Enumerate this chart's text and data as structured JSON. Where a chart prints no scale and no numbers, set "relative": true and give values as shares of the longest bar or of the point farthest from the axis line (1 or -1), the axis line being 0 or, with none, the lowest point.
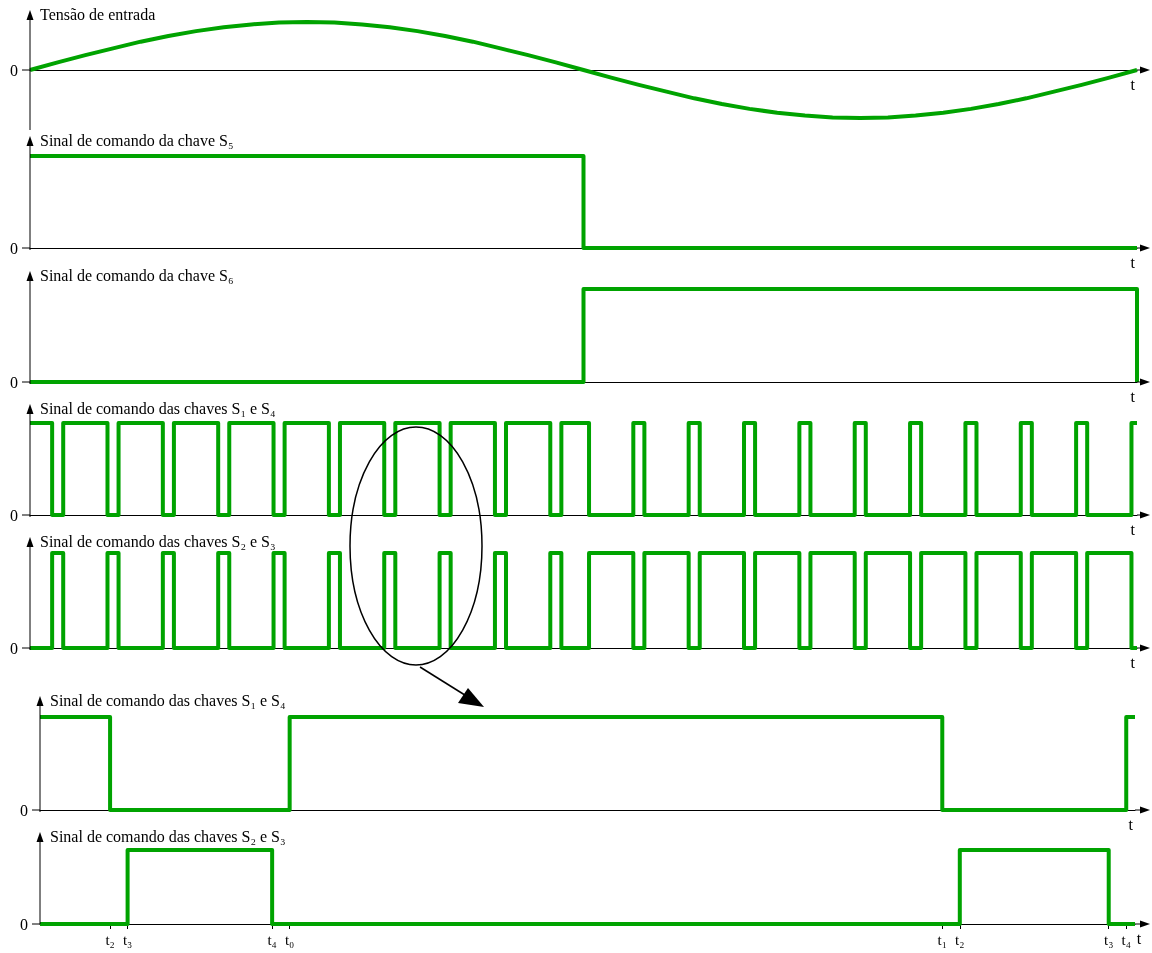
{
  "chart_data": [
    {
      "type": "line",
      "title": "Tensão de entrada",
      "xlabel": "t",
      "relative": true,
      "color": "#00a300",
      "annotations": [
        "0"
      ],
      "categories": [
        null,
        null,
        null,
        null,
        null,
        null,
        null,
        null,
        null,
        null,
        null,
        null,
        null,
        null,
        null,
        null,
        null,
        null,
        null,
        null,
        null,
        null,
        null,
        null,
        null,
        null,
        null,
        null,
        null,
        null,
        null,
        null,
        null,
        null,
        null,
        null,
        null,
        null,
        null,
        null,
        null
      ],
      "values": [
        0,
        0.16,
        0.31,
        0.45,
        0.59,
        0.71,
        0.81,
        0.89,
        0.95,
        0.99,
        1,
        0.99,
        0.95,
        0.89,
        0.81,
        0.71,
        0.59,
        0.45,
        0.31,
        0.16,
        0,
        -0.16,
        -0.31,
        -0.45,
        -0.59,
        -0.71,
        -0.81,
        -0.89,
        -0.95,
        -0.99,
        -1,
        -0.99,
        -0.95,
        -0.89,
        -0.81,
        -0.71,
        -0.59,
        -0.45,
        -0.31,
        -0.16,
        0
      ]
    },
    {
      "type": "step",
      "title": "Sinal de comando da chave S₅",
      "xlabel": "t",
      "relative": true,
      "color": "#00a300",
      "annotations": [
        "0"
      ],
      "categories": [
        null,
        null,
        null
      ],
      "values": [
        1,
        0,
        0
      ]
    },
    {
      "type": "step",
      "title": "Sinal de comando da chave S₆",
      "xlabel": "t",
      "relative": true,
      "color": "#00a300",
      "annotations": [
        "0"
      ],
      "categories": [
        null,
        null,
        null
      ],
      "values": [
        0,
        1,
        0
      ]
    },
    {
      "type": "step",
      "title": "Sinal de comando das chaves S₁ e S₄",
      "xlabel": "t",
      "relative": true,
      "color": "#00a300",
      "annotations": [
        "0"
      ],
      "categories": [
        null,
        null,
        null,
        null,
        null,
        null,
        null,
        null,
        null,
        null,
        null,
        null,
        null,
        null,
        null,
        null,
        null,
        null,
        null,
        null,
        null,
        null,
        null,
        null,
        null,
        null,
        null,
        null,
        null,
        null,
        null,
        null,
        null,
        null,
        null,
        null,
        null,
        null,
        null,
        null,
        null,
        null,
        null,
        null,
        null,
        null,
        null,
        null,
        null,
        null,
        null,
        null,
        null,
        null,
        null,
        null,
        null,
        null,
        null,
        null,
        null,
        null,
        null,
        null,
        null,
        null,
        null,
        null,
        null,
        null,
        null,
        null,
        null,
        null,
        null,
        null,
        null,
        null,
        null,
        null,
        null,
        null,
        null,
        null,
        null,
        null,
        null,
        null,
        null,
        null,
        null,
        null,
        null,
        null,
        null,
        null,
        null,
        null,
        null,
        null,
        null,
        null,
        null,
        null,
        null,
        null,
        null,
        null,
        null,
        null,
        null,
        null,
        null,
        null,
        null,
        null,
        null,
        null,
        null,
        null,
        null,
        null,
        null,
        null,
        null,
        null,
        null,
        null,
        null,
        null,
        null,
        null,
        null,
        null,
        null,
        null,
        null,
        null,
        null,
        null,
        null,
        null,
        null,
        null,
        null,
        null,
        null,
        null,
        null,
        null,
        null,
        null,
        null,
        null,
        null,
        null,
        null,
        null,
        null,
        null,
        null,
        null,
        null,
        null,
        null,
        null,
        null,
        null,
        null,
        null,
        null,
        null,
        null,
        null,
        null,
        null,
        null,
        null,
        null,
        null,
        null,
        null,
        null,
        null,
        null,
        null,
        null,
        null,
        null,
        null,
        null,
        null,
        null,
        null,
        null,
        null,
        null,
        null,
        null,
        null,
        null
      ],
      "values": [
        1,
        1,
        1,
        1,
        0,
        0,
        1,
        1,
        1,
        1,
        1,
        1,
        1,
        1,
        0,
        0,
        1,
        1,
        1,
        1,
        1,
        1,
        1,
        1,
        0,
        0,
        1,
        1,
        1,
        1,
        1,
        1,
        1,
        1,
        0,
        0,
        1,
        1,
        1,
        1,
        1,
        1,
        1,
        1,
        0,
        0,
        1,
        1,
        1,
        1,
        1,
        1,
        1,
        1,
        0,
        0,
        1,
        1,
        1,
        1,
        1,
        1,
        1,
        1,
        0,
        0,
        1,
        1,
        1,
        1,
        1,
        1,
        1,
        1,
        0,
        0,
        1,
        1,
        1,
        1,
        1,
        1,
        1,
        1,
        0,
        0,
        1,
        1,
        1,
        1,
        1,
        1,
        1,
        1,
        0,
        0,
        1,
        1,
        1,
        1,
        1,
        0,
        0,
        0,
        0,
        0,
        0,
        0,
        0,
        1,
        1,
        0,
        0,
        0,
        0,
        0,
        0,
        0,
        0,
        1,
        1,
        0,
        0,
        0,
        0,
        0,
        0,
        0,
        0,
        1,
        1,
        0,
        0,
        0,
        0,
        0,
        0,
        0,
        0,
        1,
        1,
        0,
        0,
        0,
        0,
        0,
        0,
        0,
        0,
        1,
        1,
        0,
        0,
        0,
        0,
        0,
        0,
        0,
        0,
        1,
        1,
        0,
        0,
        0,
        0,
        0,
        0,
        0,
        0,
        1,
        1,
        0,
        0,
        0,
        0,
        0,
        0,
        0,
        0,
        1,
        1,
        0,
        0,
        0,
        0,
        0,
        0,
        0,
        0,
        1,
        1,
        0,
        0,
        0,
        0,
        0,
        0,
        0,
        0,
        1,
        1
      ]
    },
    {
      "type": "step",
      "title": "Sinal de comando das chaves S₂ e S₃",
      "xlabel": "t",
      "relative": true,
      "color": "#00a300",
      "annotations": [
        "0"
      ],
      "categories": [
        null,
        null,
        null,
        null,
        null,
        null,
        null,
        null,
        null,
        null,
        null,
        null,
        null,
        null,
        null,
        null,
        null,
        null,
        null,
        null,
        null,
        null,
        null,
        null,
        null,
        null,
        null,
        null,
        null,
        null,
        null,
        null,
        null,
        null,
        null,
        null,
        null,
        null,
        null,
        null,
        null,
        null,
        null,
        null,
        null,
        null,
        null,
        null,
        null,
        null,
        null,
        null,
        null,
        null,
        null,
        null,
        null,
        null,
        null,
        null,
        null,
        null,
        null,
        null,
        null,
        null,
        null,
        null,
        null,
        null,
        null,
        null,
        null,
        null,
        null,
        null,
        null,
        null,
        null,
        null,
        null,
        null,
        null,
        null,
        null,
        null,
        null,
        null,
        null,
        null,
        null,
        null,
        null,
        null,
        null,
        null,
        null,
        null,
        null,
        null,
        null,
        null,
        null,
        null,
        null,
        null,
        null,
        null,
        null,
        null,
        null,
        null,
        null,
        null,
        null,
        null,
        null,
        null,
        null,
        null,
        null,
        null,
        null,
        null,
        null,
        null,
        null,
        null,
        null,
        null,
        null,
        null,
        null,
        null,
        null,
        null,
        null,
        null,
        null,
        null,
        null,
        null,
        null,
        null,
        null,
        null,
        null,
        null,
        null,
        null,
        null,
        null,
        null,
        null,
        null,
        null,
        null,
        null,
        null,
        null,
        null,
        null,
        null,
        null,
        null,
        null,
        null,
        null,
        null,
        null,
        null,
        null,
        null,
        null,
        null,
        null,
        null,
        null,
        null,
        null,
        null,
        null,
        null,
        null,
        null,
        null,
        null,
        null,
        null,
        null,
        null,
        null,
        null,
        null,
        null,
        null,
        null,
        null,
        null,
        null,
        null
      ],
      "values": [
        0,
        0,
        0,
        0,
        1,
        1,
        0,
        0,
        0,
        0,
        0,
        0,
        0,
        0,
        1,
        1,
        0,
        0,
        0,
        0,
        0,
        0,
        0,
        0,
        1,
        1,
        0,
        0,
        0,
        0,
        0,
        0,
        0,
        0,
        1,
        1,
        0,
        0,
        0,
        0,
        0,
        0,
        0,
        0,
        1,
        1,
        0,
        0,
        0,
        0,
        0,
        0,
        0,
        0,
        1,
        1,
        0,
        0,
        0,
        0,
        0,
        0,
        0,
        0,
        1,
        1,
        0,
        0,
        0,
        0,
        0,
        0,
        0,
        0,
        1,
        1,
        0,
        0,
        0,
        0,
        0,
        0,
        0,
        0,
        1,
        1,
        0,
        0,
        0,
        0,
        0,
        0,
        0,
        0,
        1,
        1,
        0,
        0,
        0,
        0,
        0,
        1,
        1,
        1,
        1,
        1,
        1,
        1,
        1,
        0,
        0,
        1,
        1,
        1,
        1,
        1,
        1,
        1,
        1,
        0,
        0,
        1,
        1,
        1,
        1,
        1,
        1,
        1,
        1,
        0,
        0,
        1,
        1,
        1,
        1,
        1,
        1,
        1,
        1,
        0,
        0,
        1,
        1,
        1,
        1,
        1,
        1,
        1,
        1,
        0,
        0,
        1,
        1,
        1,
        1,
        1,
        1,
        1,
        1,
        0,
        0,
        1,
        1,
        1,
        1,
        1,
        1,
        1,
        1,
        0,
        0,
        1,
        1,
        1,
        1,
        1,
        1,
        1,
        1,
        0,
        0,
        1,
        1,
        1,
        1,
        1,
        1,
        1,
        1,
        0,
        0,
        1,
        1,
        1,
        1,
        1,
        1,
        1,
        1,
        0,
        0
      ]
    },
    {
      "type": "step",
      "title": "Sinal de comando das chaves S₁ e S₄",
      "xlabel": "t",
      "relative": true,
      "color": "#00a300",
      "annotations": [
        "0"
      ],
      "categories": [
        null,
        null,
        null,
        null,
        null,
        null,
        null,
        null,
        null,
        null,
        null,
        null,
        null,
        null,
        null,
        null,
        null,
        null,
        null,
        null,
        null,
        null,
        null,
        null,
        null,
        null,
        null,
        null,
        null,
        null,
        null,
        null,
        null,
        null,
        null,
        null,
        null,
        null,
        null,
        null,
        null,
        null,
        null,
        null,
        null,
        null,
        null,
        null,
        null,
        null,
        null,
        null,
        null,
        null,
        null,
        null,
        null,
        null,
        null,
        null,
        null,
        null,
        null,
        null,
        null,
        null,
        null,
        null,
        null,
        null,
        null,
        null,
        null,
        null,
        null,
        null,
        null,
        null,
        null,
        null,
        null,
        null,
        null,
        null,
        null,
        null,
        null,
        null,
        null,
        null,
        null,
        null,
        null,
        null,
        null,
        null,
        null,
        null,
        null,
        null,
        null,
        null,
        null,
        null,
        null,
        null,
        null,
        null,
        null,
        null,
        null,
        null,
        null,
        null,
        null,
        null,
        null,
        null,
        null,
        null,
        null,
        null,
        null,
        null,
        null,
        null,
        null,
        null,
        null,
        null,
        null,
        null,
        null,
        null,
        null,
        null,
        null,
        null,
        null,
        null,
        null,
        null,
        null,
        null,
        null,
        null,
        null,
        null,
        null,
        null,
        null,
        null,
        null,
        null,
        null,
        null,
        null,
        null,
        null,
        null,
        null,
        null,
        null,
        null,
        null,
        null,
        null,
        null,
        null,
        null,
        null,
        null,
        null,
        null,
        null,
        null,
        null,
        null,
        null,
        null,
        null,
        null,
        null,
        null,
        null,
        null,
        null,
        null,
        null,
        null,
        null,
        null,
        null,
        null,
        null,
        null,
        null,
        null,
        null,
        null,
        null,
        null,
        null,
        null,
        null,
        null,
        null,
        null,
        null,
        null,
        null,
        null,
        null,
        null,
        null,
        null,
        null,
        null,
        null,
        null,
        null,
        null,
        null,
        null,
        null,
        null,
        null,
        null,
        null,
        null,
        null,
        null,
        null,
        null,
        null,
        null,
        null,
        null,
        null,
        null,
        null,
        null,
        null,
        null,
        null,
        null,
        null,
        null,
        null,
        null,
        null
      ],
      "values": [
        1,
        1,
        1,
        1,
        1,
        1,
        1,
        1,
        1,
        1,
        1,
        1,
        1,
        1,
        1,
        1,
        0,
        0,
        0,
        0,
        0,
        0,
        0,
        0,
        0,
        0,
        0,
        0,
        0,
        0,
        0,
        0,
        0,
        0,
        0,
        0,
        0,
        0,
        0,
        0,
        0,
        0,
        0,
        0,
        0,
        0,
        0,
        0,
        0,
        0,
        0,
        0,
        0,
        0,
        0,
        0,
        0,
        1,
        1,
        1,
        1,
        1,
        1,
        1,
        1,
        1,
        1,
        1,
        1,
        1,
        1,
        1,
        1,
        1,
        1,
        1,
        1,
        1,
        1,
        1,
        1,
        1,
        1,
        1,
        1,
        1,
        1,
        1,
        1,
        1,
        1,
        1,
        1,
        1,
        1,
        1,
        1,
        1,
        1,
        1,
        1,
        1,
        1,
        1,
        1,
        1,
        1,
        1,
        1,
        1,
        1,
        1,
        1,
        1,
        1,
        1,
        1,
        1,
        1,
        1,
        1,
        1,
        1,
        1,
        1,
        1,
        1,
        1,
        1,
        1,
        1,
        1,
        1,
        1,
        1,
        1,
        1,
        1,
        1,
        1,
        1,
        1,
        1,
        1,
        1,
        1,
        1,
        1,
        1,
        1,
        1,
        1,
        1,
        1,
        1,
        1,
        1,
        1,
        1,
        1,
        1,
        1,
        1,
        1,
        1,
        1,
        1,
        1,
        1,
        1,
        1,
        1,
        1,
        1,
        1,
        1,
        1,
        1,
        1,
        1,
        1,
        1,
        1,
        1,
        1,
        1,
        1,
        1,
        1,
        1,
        1,
        1,
        1,
        1,
        1,
        1,
        1,
        1,
        1,
        1,
        1,
        1,
        1,
        1,
        1,
        1,
        0,
        0,
        0,
        0,
        0,
        0,
        0,
        0,
        0,
        0,
        0,
        0,
        0,
        0,
        0,
        0,
        0,
        0,
        0,
        0,
        0,
        0,
        0,
        0,
        0,
        0,
        0,
        0,
        0,
        0,
        0,
        0,
        0,
        0,
        0,
        0,
        0,
        0,
        0,
        0,
        0,
        0,
        1,
        1,
        1
      ]
    },
    {
      "type": "step",
      "title": "Sinal de comando das chaves S₂ e S₃",
      "xlabel": "t",
      "relative": true,
      "color": "#00a300",
      "annotations": [
        "0"
      ],
      "categories": [
        null,
        null,
        null,
        null,
        null,
        null,
        null,
        null,
        null,
        null,
        null,
        null,
        null,
        null,
        null,
        null,
        "t₂",
        null,
        null,
        null,
        "t₃",
        null,
        null,
        null,
        null,
        null,
        null,
        null,
        null,
        null,
        null,
        null,
        null,
        null,
        null,
        null,
        null,
        null,
        null,
        null,
        null,
        null,
        null,
        null,
        null,
        null,
        null,
        null,
        null,
        null,
        null,
        null,
        null,
        "t₄",
        null,
        null,
        null,
        "t₀",
        null,
        null,
        null,
        null,
        null,
        null,
        null,
        null,
        null,
        null,
        null,
        null,
        null,
        null,
        null,
        null,
        null,
        null,
        null,
        null,
        null,
        null,
        null,
        null,
        null,
        null,
        null,
        null,
        null,
        null,
        null,
        null,
        null,
        null,
        null,
        null,
        null,
        null,
        null,
        null,
        null,
        null,
        null,
        null,
        null,
        null,
        null,
        null,
        null,
        null,
        null,
        null,
        null,
        null,
        null,
        null,
        null,
        null,
        null,
        null,
        null,
        null,
        null,
        null,
        null,
        null,
        null,
        null,
        null,
        null,
        null,
        null,
        null,
        null,
        null,
        null,
        null,
        null,
        null,
        null,
        null,
        null,
        null,
        null,
        null,
        null,
        null,
        null,
        null,
        null,
        null,
        null,
        null,
        null,
        null,
        null,
        null,
        null,
        null,
        null,
        null,
        null,
        null,
        null,
        null,
        null,
        null,
        null,
        null,
        null,
        null,
        null,
        null,
        null,
        null,
        null,
        null,
        null,
        null,
        null,
        null,
        null,
        null,
        null,
        null,
        null,
        null,
        null,
        null,
        null,
        null,
        null,
        null,
        null,
        null,
        null,
        null,
        null,
        null,
        null,
        null,
        null,
        null,
        null,
        null,
        null,
        null,
        null,
        "t₁",
        null,
        null,
        null,
        "t₂",
        null,
        null,
        null,
        null,
        null,
        null,
        null,
        null,
        null,
        null,
        null,
        null,
        null,
        null,
        null,
        null,
        null,
        null,
        null,
        null,
        null,
        null,
        null,
        null,
        null,
        null,
        null,
        null,
        null,
        null,
        null,
        null,
        null,
        "t₃",
        null,
        null,
        null,
        "t₄",
        null,
        null
      ],
      "values": [
        0,
        0,
        0,
        0,
        0,
        0,
        0,
        0,
        0,
        0,
        0,
        0,
        0,
        0,
        0,
        0,
        0,
        0,
        0,
        0,
        1,
        1,
        1,
        1,
        1,
        1,
        1,
        1,
        1,
        1,
        1,
        1,
        1,
        1,
        1,
        1,
        1,
        1,
        1,
        1,
        1,
        1,
        1,
        1,
        1,
        1,
        1,
        1,
        1,
        1,
        1,
        1,
        1,
        0,
        0,
        0,
        0,
        0,
        0,
        0,
        0,
        0,
        0,
        0,
        0,
        0,
        0,
        0,
        0,
        0,
        0,
        0,
        0,
        0,
        0,
        0,
        0,
        0,
        0,
        0,
        0,
        0,
        0,
        0,
        0,
        0,
        0,
        0,
        0,
        0,
        0,
        0,
        0,
        0,
        0,
        0,
        0,
        0,
        0,
        0,
        0,
        0,
        0,
        0,
        0,
        0,
        0,
        0,
        0,
        0,
        0,
        0,
        0,
        0,
        0,
        0,
        0,
        0,
        0,
        0,
        0,
        0,
        0,
        0,
        0,
        0,
        0,
        0,
        0,
        0,
        0,
        0,
        0,
        0,
        0,
        0,
        0,
        0,
        0,
        0,
        0,
        0,
        0,
        0,
        0,
        0,
        0,
        0,
        0,
        0,
        0,
        0,
        0,
        0,
        0,
        0,
        0,
        0,
        0,
        0,
        0,
        0,
        0,
        0,
        0,
        0,
        0,
        0,
        0,
        0,
        0,
        0,
        0,
        0,
        0,
        0,
        0,
        0,
        0,
        0,
        0,
        0,
        0,
        0,
        0,
        0,
        0,
        0,
        0,
        0,
        0,
        0,
        0,
        0,
        0,
        0,
        0,
        0,
        0,
        0,
        0,
        0,
        0,
        0,
        0,
        0,
        0,
        0,
        0,
        0,
        1,
        1,
        1,
        1,
        1,
        1,
        1,
        1,
        1,
        1,
        1,
        1,
        1,
        1,
        1,
        1,
        1,
        1,
        1,
        1,
        1,
        1,
        1,
        1,
        1,
        1,
        1,
        1,
        1,
        1,
        1,
        1,
        1,
        1,
        0,
        0,
        0,
        0,
        0,
        0,
        0
      ]
    }
  ]
}
